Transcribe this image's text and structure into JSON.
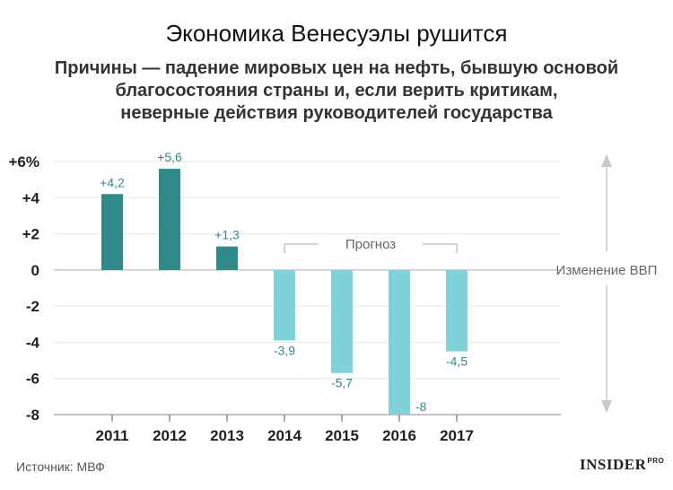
{
  "header": {
    "title": "Экономика Венесуэлы рушится",
    "subtitle_lines": [
      "Причины — падение мировых цен на нефть, бывшую основой",
      "благосостояния страны и, если верить критикам,",
      "неверные действия руководителей государства"
    ]
  },
  "chart_data": {
    "type": "bar",
    "categories": [
      "2011",
      "2012",
      "2013",
      "2014",
      "2015",
      "2016",
      "2017"
    ],
    "values": [
      4.2,
      5.6,
      1.3,
      -3.9,
      -5.7,
      -8,
      -4.5
    ],
    "value_labels": [
      "+4,2",
      "+5,6",
      "+1,3",
      "-3,9",
      "-5,7",
      "-8",
      "-4,5"
    ],
    "ylim": [
      -8,
      6
    ],
    "yticks": [
      6,
      4,
      2,
      0,
      -2,
      -4,
      -6,
      -8
    ],
    "ytick_labels": [
      "+6%",
      "+4",
      "+2",
      "0",
      "-2",
      "-4",
      "-6",
      "-8"
    ],
    "forecast_from": "2014",
    "forecast_label": "Прогноз",
    "axis_annotation": "Изменение ВВП",
    "grid": true,
    "colors": {
      "actual": "#2f8a8a",
      "forecast": "#7fd3d8",
      "label_text": "#2f8a8a",
      "grid": "#e6e6e6",
      "zero_line": "#aaaaaa"
    }
  },
  "footer": {
    "source": "Источник: МВФ",
    "logo_text": "INSIDER",
    "logo_super": "PRO"
  }
}
